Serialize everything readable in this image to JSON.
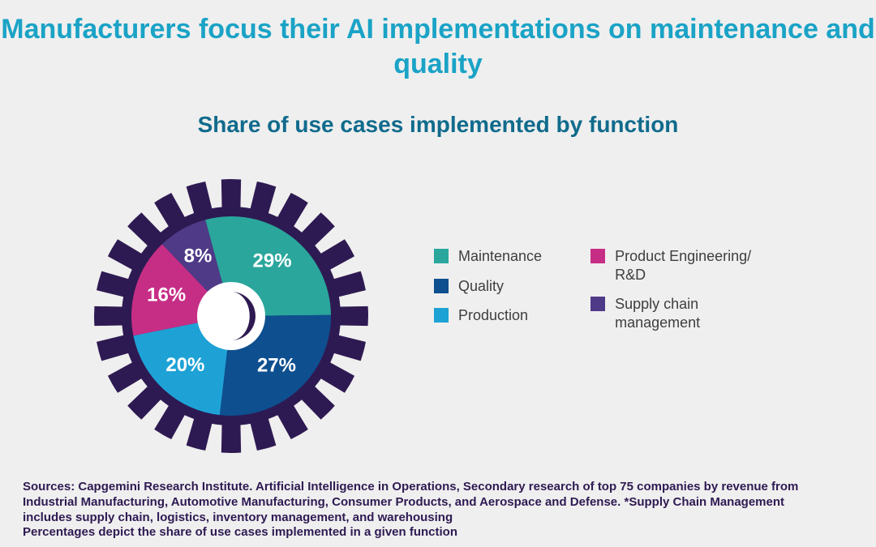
{
  "background_color": "#efefef",
  "title": {
    "text": "Manufacturers focus their AI implementations on maintenance and quality",
    "color": "#1aa3c6",
    "fontsize": 34
  },
  "subtitle": {
    "text": "Share of use cases implemented by function",
    "color": "#106b8c",
    "fontsize": 28
  },
  "chart": {
    "type": "pie",
    "gear_color": "#2e1a52",
    "center_hole_color": "#ffffff",
    "crescent_color": "#2e1a52",
    "label_color": "#ffffff",
    "label_fontsize": 24,
    "slices": [
      {
        "label": "Maintenance",
        "value": 29,
        "display": "29%",
        "color": "#2aa69c"
      },
      {
        "label": "Quality",
        "value": 27,
        "display": "27%",
        "color": "#0e4f8f"
      },
      {
        "label": "Production",
        "value": 20,
        "display": "20%",
        "color": "#1ea2d6"
      },
      {
        "label": "Product Engineering/ R&D",
        "value": 16,
        "display": "16%",
        "color": "#c62e86"
      },
      {
        "label": "Supply chain management",
        "value": 8,
        "display": "8%",
        "color": "#4f3a87"
      }
    ]
  },
  "legend": {
    "text_color": "#3e3e3e",
    "fontsize": 18,
    "columns": [
      [
        {
          "label": "Maintenance",
          "slice_index": 0
        },
        {
          "label": "Quality",
          "slice_index": 1
        },
        {
          "label": "Production",
          "slice_index": 2
        }
      ],
      [
        {
          "label": "Product Engineering/ R&D",
          "slice_index": 3
        },
        {
          "label": "Supply chain management",
          "slice_index": 4
        }
      ]
    ]
  },
  "sources": {
    "text_color": "#2e1a52",
    "fontsize": 15,
    "lines": [
      "Sources: Capgemini Research Institute. Artificial Intelligence in Operations, Secondary research of top 75 companies by revenue from",
      "Industrial Manufacturing, Automotive Manufacturing, Consumer Products, and Aerospace and Defense. *Supply Chain Management",
      "includes supply chain, logistics, inventory management, and warehousing",
      "Percentages depict the share of use cases implemented in a given function"
    ]
  }
}
